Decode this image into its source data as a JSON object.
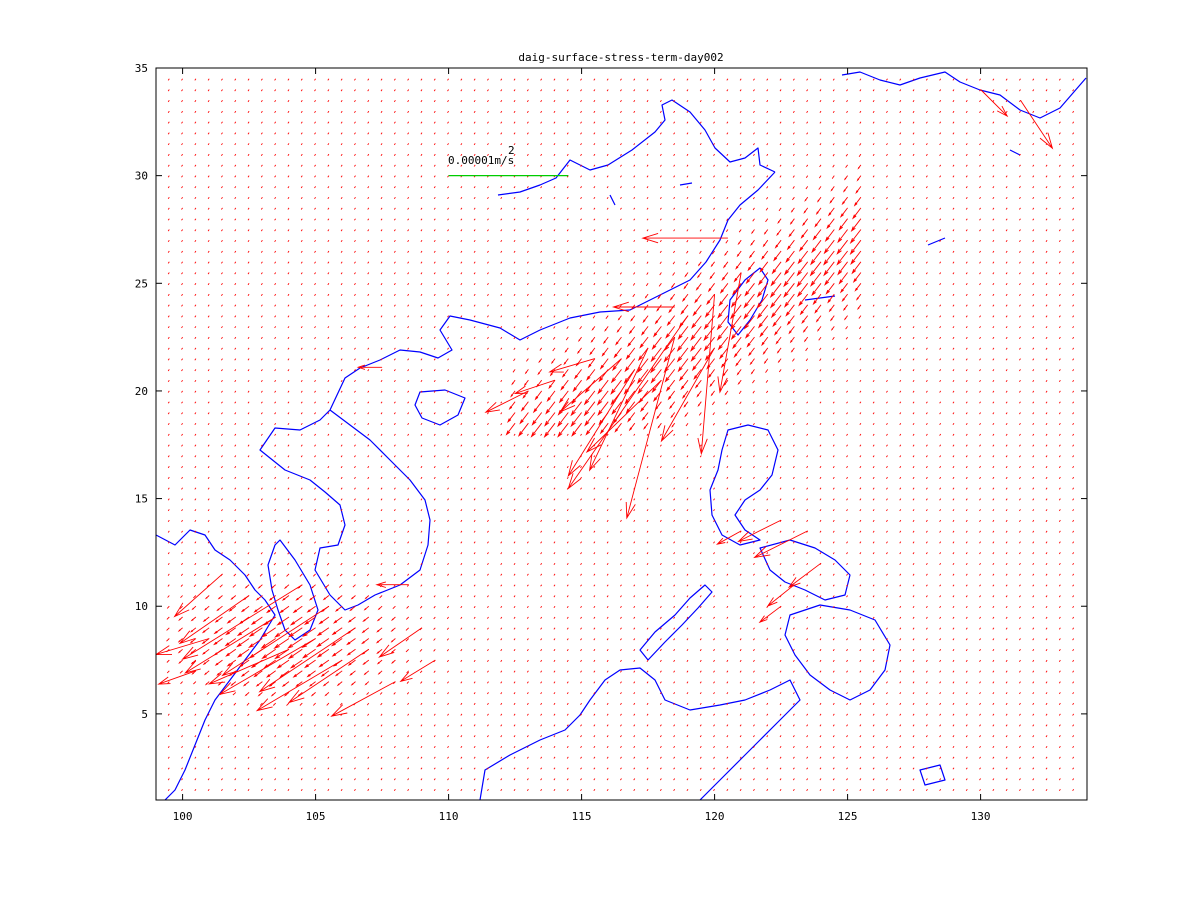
{
  "chart_data": {
    "type": "vector-field-map",
    "title": "daig-surface-stress-term-day002",
    "xlabel": "",
    "ylabel": "",
    "xlim": [
      99,
      134
    ],
    "ylim": [
      1,
      35
    ],
    "xticks": [
      100,
      105,
      110,
      115,
      120,
      125,
      130
    ],
    "yticks": [
      5,
      10,
      15,
      20,
      25,
      30,
      35
    ],
    "grid": false,
    "colors": {
      "vectors": "#ff0000",
      "coastline": "#0000ff",
      "scale_arrow": "#00cc00",
      "axes": "#000000"
    },
    "scale_arrow": {
      "label": "0.00001m/s",
      "superscript": "2",
      "x_start": 110,
      "x_end": 114.5,
      "y": 30
    },
    "vector_grid": {
      "dx": 0.5,
      "dy": 0.5
    },
    "strong_vectors": [
      {
        "x": 120.5,
        "y": 27.1,
        "u": -3.2,
        "v": 0.0
      },
      {
        "x": 118.5,
        "y": 23.9,
        "u": -2.3,
        "v": 0.0
      },
      {
        "x": 107.5,
        "y": 21.1,
        "u": -0.9,
        "v": 0.0
      },
      {
        "x": 108.5,
        "y": 11.0,
        "u": -1.2,
        "v": 0.0
      },
      {
        "x": 120.0,
        "y": 24.5,
        "u": -0.5,
        "v": -6.0
      },
      {
        "x": 121.0,
        "y": 25.5,
        "u": -0.8,
        "v": -4.5
      },
      {
        "x": 119.0,
        "y": 23.5,
        "u": -4.5,
        "v": -6.5
      },
      {
        "x": 118.5,
        "y": 22.5,
        "u": -1.8,
        "v": -6.8
      },
      {
        "x": 120.0,
        "y": 22.0,
        "u": -2.0,
        "v": -3.5
      },
      {
        "x": 117.5,
        "y": 22.0,
        "u": -2.2,
        "v": -4.6
      },
      {
        "x": 117.0,
        "y": 21.0,
        "u": -2.5,
        "v": -4.0
      },
      {
        "x": 118.0,
        "y": 20.5,
        "u": -2.8,
        "v": -2.7
      },
      {
        "x": 116.5,
        "y": 21.5,
        "u": -2.3,
        "v": -2.0
      },
      {
        "x": 115.5,
        "y": 21.5,
        "u": -1.7,
        "v": -0.5
      },
      {
        "x": 114.0,
        "y": 20.5,
        "u": -1.5,
        "v": -0.5
      },
      {
        "x": 113.0,
        "y": 20.0,
        "u": -1.6,
        "v": -0.8
      },
      {
        "x": 104.5,
        "y": 11.0,
        "u": -4.5,
        "v": -2.8
      },
      {
        "x": 105.5,
        "y": 10.0,
        "u": -4.0,
        "v": -2.6
      },
      {
        "x": 106.5,
        "y": 9.0,
        "u": -3.6,
        "v": -2.4
      },
      {
        "x": 107.0,
        "y": 8.0,
        "u": -3.0,
        "v": -2.0
      },
      {
        "x": 106.0,
        "y": 7.5,
        "u": -3.2,
        "v": -1.9
      },
      {
        "x": 105.0,
        "y": 8.5,
        "u": -3.6,
        "v": -2.1
      },
      {
        "x": 103.5,
        "y": 9.5,
        "u": -3.4,
        "v": -2.1
      },
      {
        "x": 102.5,
        "y": 10.5,
        "u": -2.6,
        "v": -1.8
      },
      {
        "x": 101.5,
        "y": 11.5,
        "u": -1.8,
        "v": -1.6
      },
      {
        "x": 104.0,
        "y": 8.0,
        "u": -3.0,
        "v": -1.3
      },
      {
        "x": 108.0,
        "y": 6.5,
        "u": -2.4,
        "v": -1.3
      },
      {
        "x": 109.0,
        "y": 9.0,
        "u": -1.6,
        "v": -1.1
      },
      {
        "x": 109.5,
        "y": 7.5,
        "u": -1.3,
        "v": -0.8
      },
      {
        "x": 101.0,
        "y": 8.5,
        "u": -2.0,
        "v": -0.6
      },
      {
        "x": 100.5,
        "y": 7.0,
        "u": -1.4,
        "v": -0.5
      },
      {
        "x": 122.5,
        "y": 14.0,
        "u": -1.6,
        "v": -0.8
      },
      {
        "x": 123.5,
        "y": 13.5,
        "u": -2.0,
        "v": -1.0
      },
      {
        "x": 124.0,
        "y": 12.0,
        "u": -1.2,
        "v": -0.9
      },
      {
        "x": 123.0,
        "y": 11.0,
        "u": -1.0,
        "v": -0.8
      },
      {
        "x": 122.5,
        "y": 10.0,
        "u": -0.8,
        "v": -0.6
      },
      {
        "x": 121.0,
        "y": 13.5,
        "u": -0.9,
        "v": -0.5
      },
      {
        "x": 131.5,
        "y": 33.5,
        "u": 1.2,
        "v": -1.8
      },
      {
        "x": 130.0,
        "y": 34.0,
        "u": 1.0,
        "v": -1.0
      }
    ]
  }
}
